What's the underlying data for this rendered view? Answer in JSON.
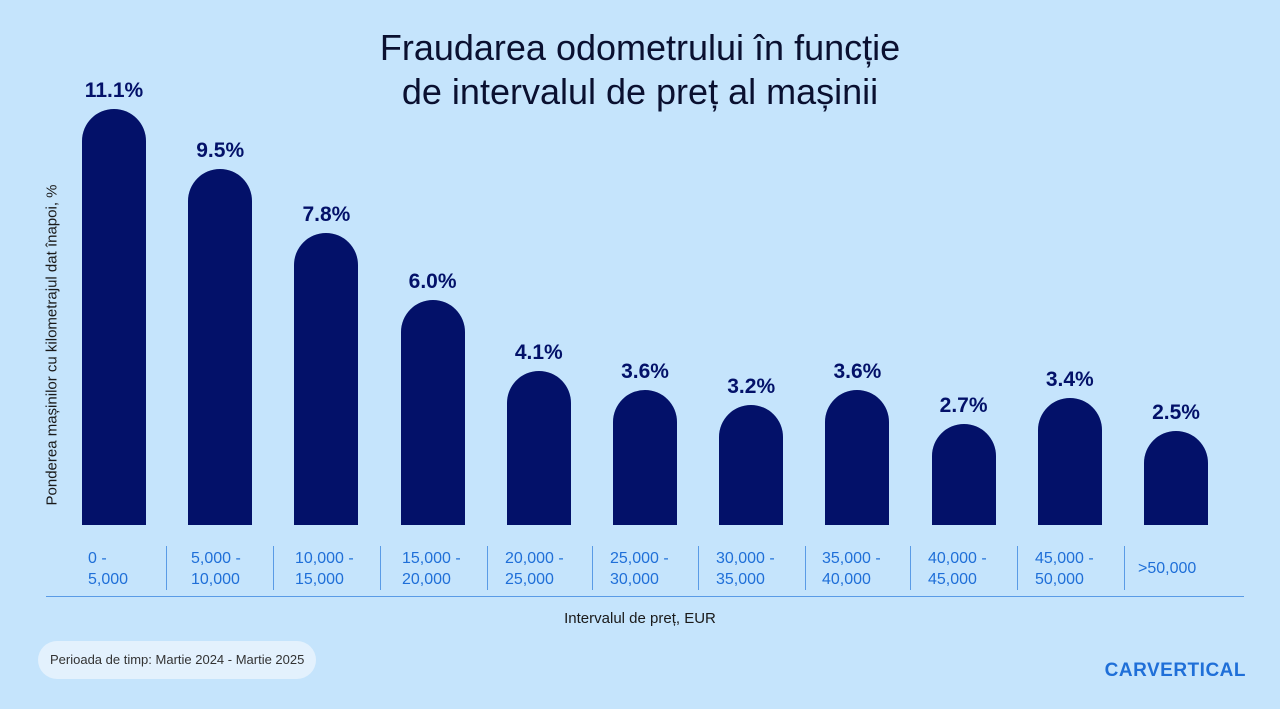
{
  "chart_data": {
    "type": "bar",
    "title": [
      "Fraudarea odometrului în funcție",
      "de intervalul de preț al mașinii"
    ],
    "xlabel": "Intervalul de preț, EUR",
    "ylabel": "Ponderea mașinilor cu kilometrajul dat înapoi, %",
    "categories": [
      [
        "0 -",
        "5,000"
      ],
      [
        "5,000 -",
        "10,000"
      ],
      [
        "10,000 -",
        "15,000"
      ],
      [
        "15,000 -",
        "20,000"
      ],
      [
        "20,000 -",
        "25,000"
      ],
      [
        "25,000 -",
        "30,000"
      ],
      [
        "30,000 -",
        "35,000"
      ],
      [
        "35,000 -",
        "40,000"
      ],
      [
        "40,000 -",
        "45,000"
      ],
      [
        "45,000 -",
        "50,000"
      ],
      [
        ">50,000"
      ]
    ],
    "values": [
      11.1,
      9.5,
      7.8,
      6.0,
      4.1,
      3.6,
      3.2,
      3.6,
      2.7,
      3.4,
      2.5
    ],
    "value_labels": [
      "11.1%",
      "9.5%",
      "7.8%",
      "6.0%",
      "4.1%",
      "3.6%",
      "3.2%",
      "3.6%",
      "2.7%",
      "3.4%",
      "2.5%"
    ],
    "ylim": [
      0,
      11.1
    ],
    "grid": false,
    "bar_color": "#031169"
  },
  "footer": {
    "period": "Perioada de timp: Martie 2024 - Martie 2025",
    "logo": "CARVERTICAL"
  }
}
